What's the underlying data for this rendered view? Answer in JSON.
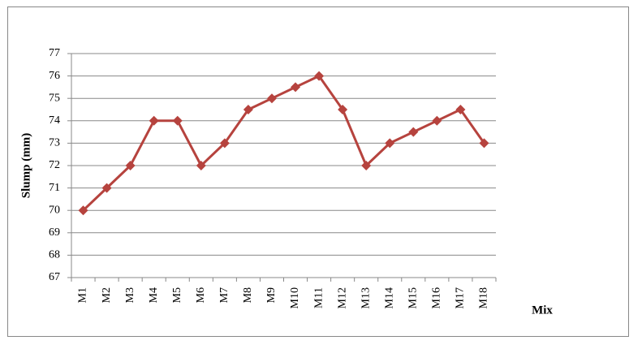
{
  "chart_data": {
    "type": "line",
    "x_label": "Mix",
    "y_label": "Slump (mm)",
    "categories": [
      "M1",
      "M2",
      "M3",
      "M4",
      "M5",
      "M6",
      "M7",
      "M8",
      "M9",
      "M10",
      "M11",
      "M12",
      "M13",
      "M14",
      "M15",
      "M16",
      "M17",
      "M18"
    ],
    "series": [
      {
        "name": "Slump",
        "color": "#b6433e",
        "values": [
          70,
          71,
          72,
          74,
          74,
          72,
          73,
          74.5,
          75,
          75.5,
          76,
          74.5,
          72,
          73,
          73.5,
          74,
          74.5,
          73
        ]
      }
    ],
    "ylim": [
      67,
      77
    ],
    "yticks": [
      67,
      68,
      69,
      70,
      71,
      72,
      73,
      74,
      75,
      76,
      77
    ],
    "grid": true,
    "legend": false
  }
}
